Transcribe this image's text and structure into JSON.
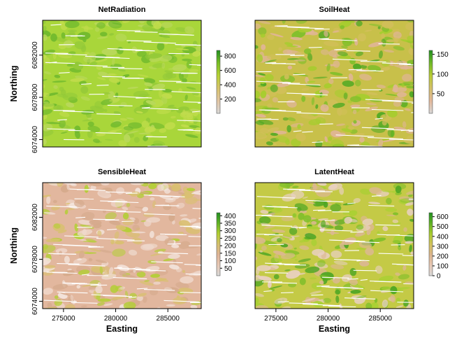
{
  "figure": {
    "x_axis_title": "Easting",
    "y_axis_title": "Northing",
    "x_ticks": [
      {
        "value": 275000,
        "label": "275000"
      },
      {
        "value": 280000,
        "label": "280000"
      },
      {
        "value": 285000,
        "label": "285000"
      }
    ],
    "y_ticks": [
      {
        "value": 6074000,
        "label": "6074000"
      },
      {
        "value": 6078000,
        "label": "6078000"
      },
      {
        "value": 6082000,
        "label": "6082000"
      }
    ],
    "x_range": [
      273000,
      288200
    ],
    "y_range": [
      6073300,
      6085300
    ]
  },
  "panels": [
    {
      "title": "NetRadiation",
      "legend_range": [
        0,
        880
      ],
      "legend_ticks": [
        {
          "value": 200,
          "label": "200"
        },
        {
          "value": 400,
          "label": "400"
        },
        {
          "value": 600,
          "label": "600"
        },
        {
          "value": 800,
          "label": "800"
        }
      ],
      "colors": [
        "#d9d9d9",
        "#e3c6a4",
        "#d8c46a",
        "#b7d232",
        "#78bf22",
        "#1f8f1f"
      ],
      "base_color": "#a9d63a",
      "patch_colors": [
        "#c1dc4c",
        "#93c938",
        "#6fb92d",
        "#b9d85a"
      ]
    },
    {
      "title": "SoilHeat",
      "legend_range": [
        0,
        160
      ],
      "legend_ticks": [
        {
          "value": 50,
          "label": "50"
        },
        {
          "value": 100,
          "label": "100"
        },
        {
          "value": 150,
          "label": "150"
        }
      ],
      "colors": [
        "#d9d9d9",
        "#e3b89a",
        "#d4c06a",
        "#b9cc33",
        "#6fb926",
        "#1f8f1f"
      ],
      "base_color": "#c8c04a",
      "patch_colors": [
        "#e0b596",
        "#a6cd2e",
        "#4fa923",
        "#d2bf5a",
        "#7fbf2a"
      ]
    },
    {
      "title": "SensibleHeat",
      "legend_range": [
        0,
        420
      ],
      "legend_ticks": [
        {
          "value": 50,
          "label": "50"
        },
        {
          "value": 100,
          "label": "100"
        },
        {
          "value": 150,
          "label": "150"
        },
        {
          "value": 200,
          "label": "200"
        },
        {
          "value": 250,
          "label": "250"
        },
        {
          "value": 300,
          "label": "300"
        },
        {
          "value": 350,
          "label": "350"
        },
        {
          "value": 400,
          "label": "400"
        }
      ],
      "colors": [
        "#d9d9d9",
        "#e8c9b6",
        "#e0b497",
        "#d6c06c",
        "#b3cf2f",
        "#62b424",
        "#1f8f1f"
      ],
      "base_color": "#e2b79e",
      "patch_colors": [
        "#efd8cc",
        "#d9c070",
        "#b3cf35",
        "#d5aa8c",
        "#f3e4dc"
      ]
    },
    {
      "title": "LatentHeat",
      "legend_range": [
        0,
        640
      ],
      "legend_ticks": [
        {
          "value": 0,
          "label": "0"
        },
        {
          "value": 100,
          "label": "100"
        },
        {
          "value": 200,
          "label": "200"
        },
        {
          "value": 300,
          "label": "300"
        },
        {
          "value": 400,
          "label": "400"
        },
        {
          "value": 500,
          "label": "500"
        },
        {
          "value": 600,
          "label": "600"
        }
      ],
      "colors": [
        "#d9d9d9",
        "#e8c9b6",
        "#dcb58d",
        "#d3c35c",
        "#a8cc2d",
        "#5fb224",
        "#1f8f1f"
      ],
      "base_color": "#c4ca46",
      "patch_colors": [
        "#a9d033",
        "#dcb891",
        "#7fbf2a",
        "#e9d0c2",
        "#4ea624"
      ]
    }
  ]
}
